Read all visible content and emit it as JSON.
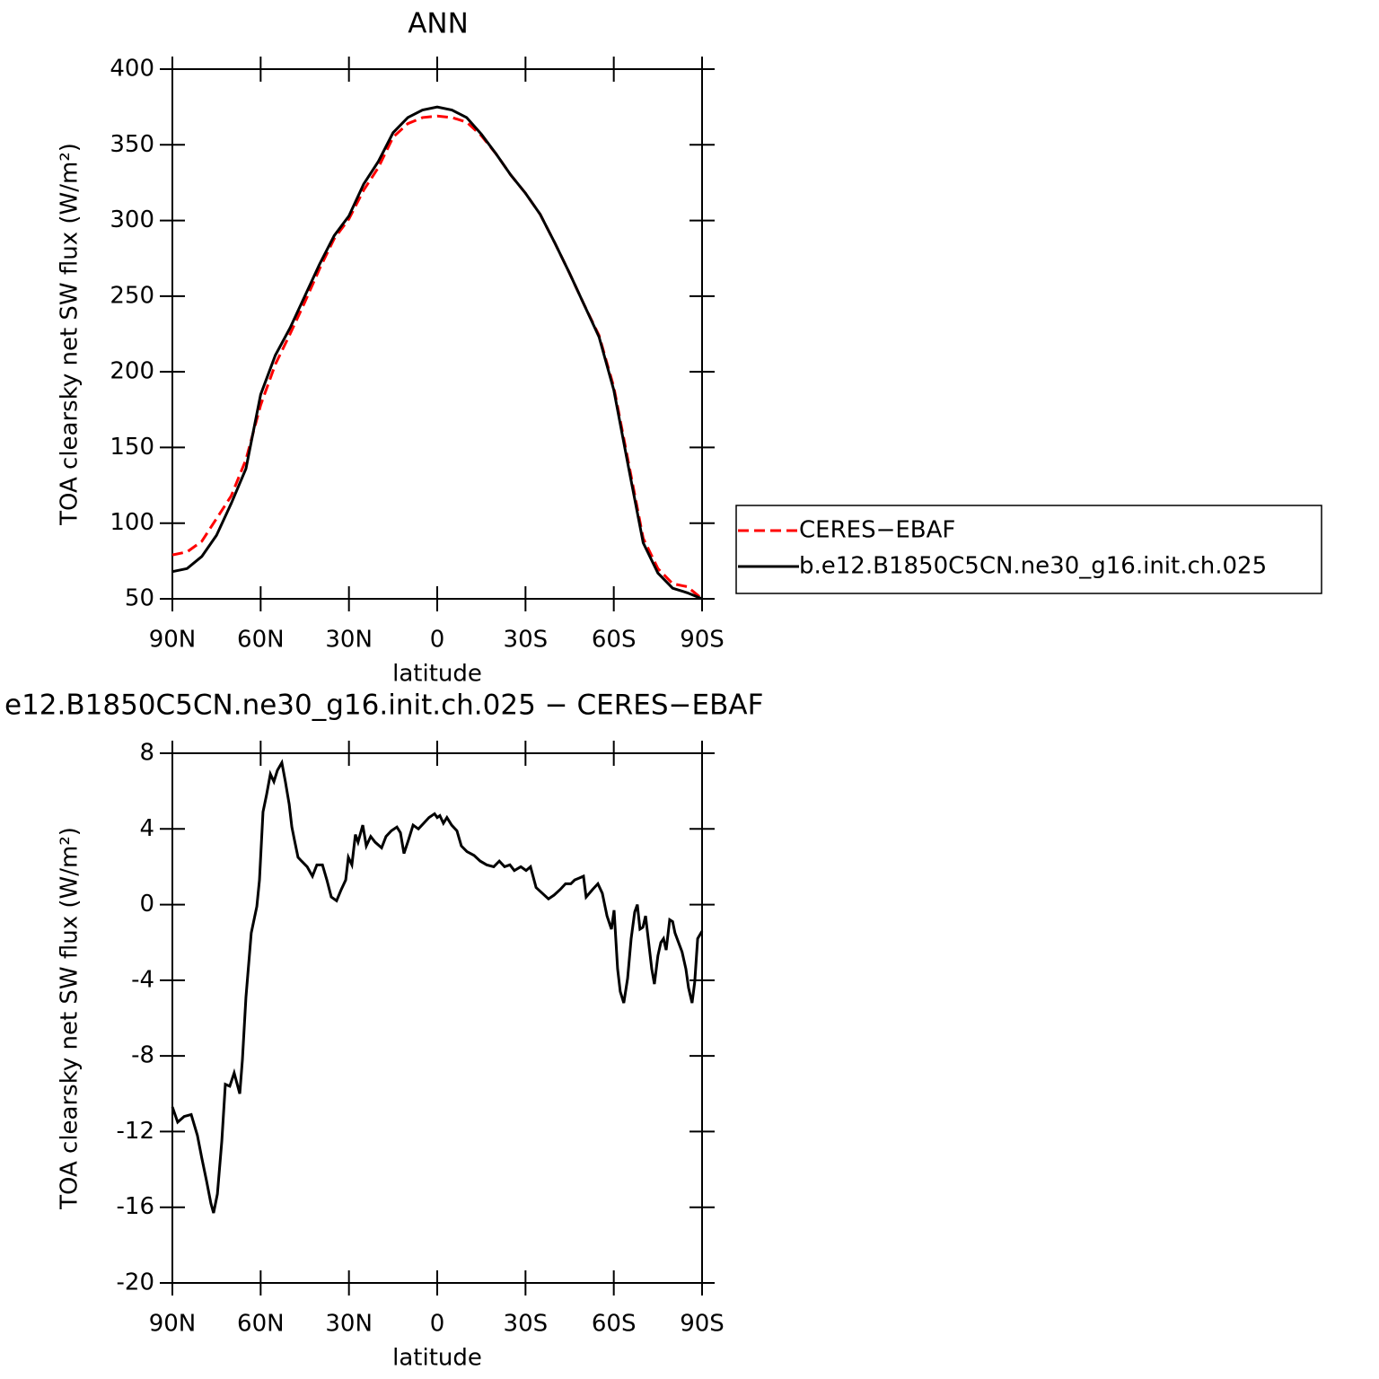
{
  "chart_data": [
    {
      "type": "line",
      "title": "ANN",
      "xlabel": "latitude",
      "ylabel": "TOA clearsky net SW flux (W/m²)",
      "x": [
        90,
        85,
        80,
        75,
        70,
        65,
        60,
        55,
        50,
        45,
        40,
        35,
        30,
        25,
        20,
        15,
        10,
        5,
        0,
        -5,
        -10,
        -15,
        -20,
        -25,
        -30,
        -35,
        -40,
        -45,
        -50,
        -55,
        -60,
        -65,
        -70,
        -75,
        -80,
        -85,
        -90
      ],
      "series": [
        {
          "name": "CERES−EBAF",
          "color": "#ff0000",
          "style": "dashed",
          "values": [
            79,
            81,
            88,
            103,
            118,
            142,
            178,
            205,
            225,
            246,
            268,
            288,
            301,
            320,
            335,
            355,
            364,
            368,
            369,
            368,
            365,
            356,
            344,
            330,
            318,
            304,
            285,
            265,
            244,
            224,
            190,
            140,
            90,
            70,
            60,
            58,
            50
          ]
        },
        {
          "name": "b.e12.B1850C5CN.ne30_g16.init.ch.025",
          "color": "#000000",
          "style": "solid",
          "values": [
            68,
            70,
            78,
            92,
            113,
            136,
            185,
            211,
            229,
            250,
            271,
            290,
            303,
            324,
            339,
            358,
            368,
            373,
            375,
            373,
            368,
            357,
            344,
            330,
            318,
            304,
            285,
            265,
            244,
            223,
            188,
            137,
            87,
            67,
            57,
            54,
            50
          ]
        }
      ],
      "xlim": [
        90,
        -90
      ],
      "xticks": [
        {
          "value": 90,
          "label": "90N"
        },
        {
          "value": 60,
          "label": "60N"
        },
        {
          "value": 30,
          "label": "30N"
        },
        0,
        {
          "value": -30,
          "label": "30S"
        },
        {
          "value": -60,
          "label": "60S"
        },
        {
          "value": -90,
          "label": "90S"
        }
      ],
      "ylim": [
        50,
        400
      ],
      "yticks": [
        50,
        100,
        150,
        200,
        250,
        300,
        350,
        400
      ],
      "legend": "right"
    },
    {
      "type": "line",
      "title": "e12.B1850C5CN.ne30_g16.init.ch.025 − CERES−EBAF",
      "xlabel": "latitude",
      "ylabel": "TOA clearsky net SW flux (W/m²)",
      "x": [
        90,
        88.2,
        86,
        83.6,
        81.5,
        80,
        78.4,
        76.9,
        76,
        74.7,
        73.2,
        72,
        70.5,
        69,
        67.1,
        66.2,
        65,
        63.2,
        61.3,
        60.4,
        59.2,
        58,
        56.7,
        55.5,
        54.3,
        52.8,
        51.6,
        50.3,
        49.4,
        48.5,
        47.3,
        46.1,
        44.2,
        42.4,
        40.9,
        39,
        37.5,
        36,
        34.2,
        32.6,
        31.1,
        30.2,
        29,
        27.8,
        26.9,
        25.3,
        24.1,
        22.6,
        21.1,
        18.9,
        17.4,
        15.6,
        13.7,
        12.5,
        11.3,
        9.8,
        8.2,
        6.4,
        4.6,
        2.8,
        0.9,
        0,
        -0.9,
        -2.1,
        -3.3,
        -4.9,
        -6.7,
        -8.2,
        -10.1,
        -12.5,
        -14.6,
        -16.8,
        -19.2,
        -21.1,
        -22.9,
        -24.7,
        -26.2,
        -28.4,
        -30.2,
        -31.7,
        -33.6,
        -35.7,
        -37.8,
        -39.7,
        -41.8,
        -43.6,
        -45.4,
        -46.7,
        -48.2,
        -49.7,
        -50.6,
        -52.8,
        -54.6,
        -56.1,
        -57.7,
        -59.2,
        -60.1,
        -61.3,
        -62.2,
        -63.4,
        -64.7,
        -65.9,
        -67.1,
        -68,
        -68.9,
        -69.9,
        -70.8,
        -71.7,
        -72.9,
        -73.8,
        -75,
        -76,
        -76.9,
        -77.8,
        -79,
        -80,
        -80.8,
        -82,
        -83.2,
        -84.5,
        -85.4,
        -86.6,
        -87.5,
        -88.5,
        -90
      ],
      "series": [
        {
          "name": null,
          "color": "#000000",
          "style": "solid",
          "values": [
            -10.7,
            -11.5,
            -11.2,
            -11.1,
            -12.2,
            -13.4,
            -14.6,
            -15.8,
            -16.3,
            -15.3,
            -12.5,
            -9.5,
            -9.6,
            -8.9,
            -10,
            -8.2,
            -4.9,
            -1.5,
            -0.1,
            1.3,
            4.9,
            5.8,
            6.9,
            6.5,
            7.1,
            7.5,
            6.5,
            5.3,
            4.1,
            3.4,
            2.5,
            2.3,
            2.0,
            1.5,
            2.1,
            2.1,
            1.3,
            0.4,
            0.2,
            0.8,
            1.3,
            2.5,
            2.1,
            3.7,
            3.3,
            4.2,
            3.1,
            3.6,
            3.3,
            3.0,
            3.6,
            3.9,
            4.1,
            3.8,
            2.7,
            3.4,
            4.2,
            4.0,
            4.3,
            4.6,
            4.8,
            4.6,
            4.7,
            4.3,
            4.6,
            4.2,
            3.9,
            3.1,
            2.8,
            2.6,
            2.3,
            2.1,
            2.0,
            2.3,
            2.0,
            2.1,
            1.8,
            2.0,
            1.8,
            2.0,
            0.9,
            0.6,
            0.3,
            0.5,
            0.8,
            1.1,
            1.1,
            1.3,
            1.4,
            1.5,
            0.4,
            0.8,
            1.1,
            0.6,
            -0.6,
            -1.3,
            -0.3,
            -3.4,
            -4.6,
            -5.2,
            -3.9,
            -1.8,
            -0.4,
            0,
            -1.3,
            -1.2,
            -0.6,
            -1.8,
            -3.4,
            -4.2,
            -2.7,
            -2.0,
            -1.8,
            -2.4,
            -0.8,
            -0.9,
            -1.5,
            -2.0,
            -2.5,
            -3.4,
            -4.4,
            -5.2,
            -4.1,
            -1.8,
            -1.4
          ]
        }
      ],
      "xlim": [
        90,
        -90
      ],
      "xticks": [
        {
          "value": 90,
          "label": "90N"
        },
        {
          "value": 60,
          "label": "60N"
        },
        {
          "value": 30,
          "label": "30N"
        },
        0,
        {
          "value": -30,
          "label": "30S"
        },
        {
          "value": -60,
          "label": "60S"
        },
        {
          "value": -90,
          "label": "90S"
        }
      ],
      "ylim": [
        -20,
        8
      ],
      "yticks": [
        -20,
        -16,
        -12,
        -8,
        -4,
        0,
        4,
        8
      ]
    }
  ]
}
